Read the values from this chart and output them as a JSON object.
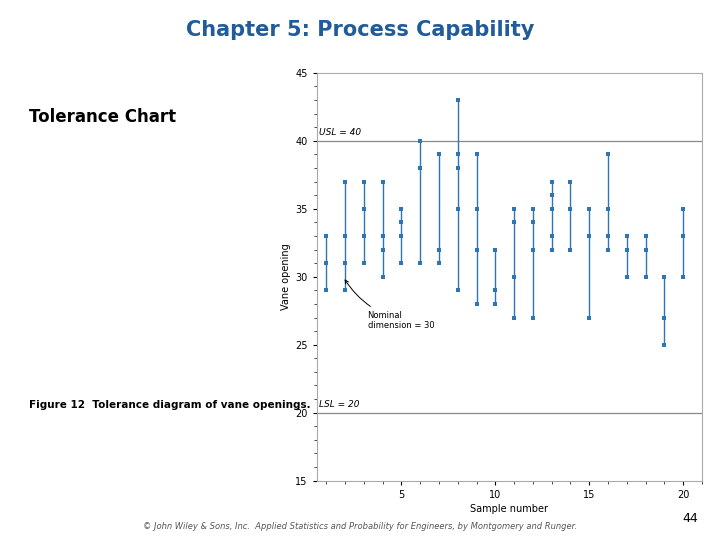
{
  "title": "Chapter 5: Process Capability",
  "title_color": "#1F5C99",
  "left_label": "Tolerance Chart",
  "figure_label": "Figure 12  Tolerance diagram of vane openings.",
  "footer": "© John Wiley & Sons, Inc.  Applied Statistics and Probability for Engineers, by Montgomery and Runger.",
  "page_number": "44",
  "ylabel": "Vane opening",
  "xlabel": "Sample number",
  "USL": 40,
  "LSL": 20,
  "nominal": 30,
  "ylim": [
    15,
    45
  ],
  "xlim": [
    0.5,
    21
  ],
  "yticks": [
    15,
    20,
    25,
    30,
    35,
    40,
    45
  ],
  "xticks": [
    5,
    10,
    15,
    20
  ],
  "dot_color": "#2E75B6",
  "line_color": "#2E75B6",
  "limit_line_color": "#888888",
  "samples": [
    [
      1,
      [
        29,
        31,
        33,
        33
      ]
    ],
    [
      2,
      [
        29,
        31,
        33,
        37
      ]
    ],
    [
      3,
      [
        31,
        33,
        35,
        37
      ]
    ],
    [
      4,
      [
        30,
        32,
        33,
        37
      ]
    ],
    [
      5,
      [
        31,
        33,
        33,
        34,
        35
      ]
    ],
    [
      6,
      [
        31,
        38,
        38,
        40
      ]
    ],
    [
      7,
      [
        31,
        32,
        39,
        39
      ]
    ],
    [
      8,
      [
        29,
        35,
        38,
        39,
        43
      ]
    ],
    [
      9,
      [
        28,
        32,
        35,
        39
      ]
    ],
    [
      10,
      [
        28,
        29,
        32,
        32
      ]
    ],
    [
      11,
      [
        27,
        30,
        34,
        35,
        35
      ]
    ],
    [
      12,
      [
        27,
        32,
        34,
        35,
        35
      ]
    ],
    [
      13,
      [
        32,
        33,
        35,
        36,
        37
      ]
    ],
    [
      14,
      [
        32,
        35,
        37,
        37
      ]
    ],
    [
      15,
      [
        27,
        33,
        35
      ]
    ],
    [
      16,
      [
        32,
        33,
        35,
        39
      ]
    ],
    [
      17,
      [
        30,
        32,
        33
      ]
    ],
    [
      18,
      [
        30,
        32,
        33
      ]
    ],
    [
      19,
      [
        25,
        27,
        27,
        30
      ]
    ],
    [
      20,
      [
        30,
        33,
        35,
        35
      ]
    ]
  ]
}
